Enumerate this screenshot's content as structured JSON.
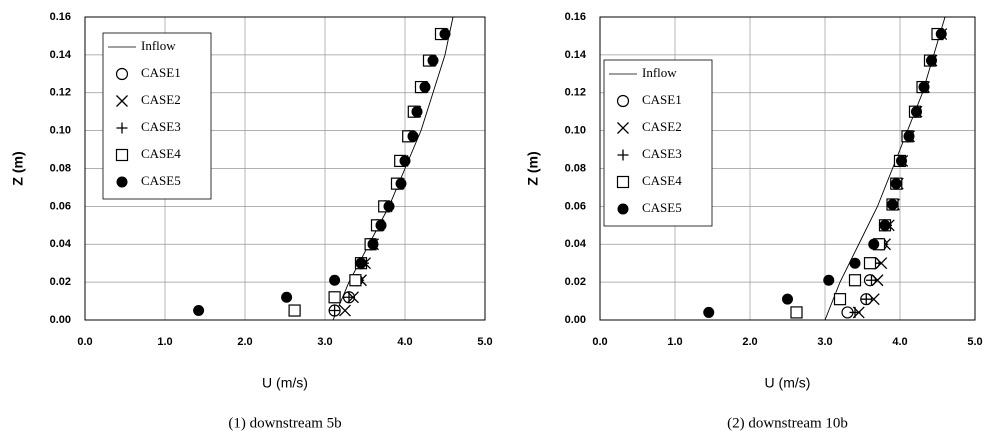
{
  "chart_data": [
    {
      "type": "scatter",
      "caption": "(1) downstream 5b",
      "xlabel": "U (m/s)",
      "ylabel": "Z (m)",
      "xlim": [
        0,
        5
      ],
      "ylim": [
        0,
        0.16
      ],
      "grid": true,
      "legend": "upper left",
      "xticks": [
        {
          "value": 0,
          "label": "0.0"
        },
        {
          "value": 1,
          "label": "1.0"
        },
        {
          "value": 2,
          "label": "2.0"
        },
        {
          "value": 3,
          "label": "3.0"
        },
        {
          "value": 4,
          "label": "4.0"
        },
        {
          "value": 5,
          "label": "5.0"
        }
      ],
      "yticks": [
        {
          "value": 0,
          "label": "0.00"
        },
        {
          "value": 0.02,
          "label": "0.02"
        },
        {
          "value": 0.04,
          "label": "0.04"
        },
        {
          "value": 0.06,
          "label": "0.06"
        },
        {
          "value": 0.08,
          "label": "0.08"
        },
        {
          "value": 0.1,
          "label": "0.10"
        },
        {
          "value": 0.12,
          "label": "0.12"
        },
        {
          "value": 0.14,
          "label": "0.14"
        },
        {
          "value": 0.16,
          "label": "0.16"
        }
      ],
      "series": [
        {
          "name": "Inflow",
          "marker": "line",
          "color": "#000000",
          "x": [
            3.1,
            3.3,
            3.55,
            3.8,
            4.0,
            4.2,
            4.35,
            4.5,
            4.6
          ],
          "values": [
            0,
            0.02,
            0.04,
            0.06,
            0.08,
            0.1,
            0.12,
            0.14,
            0.16
          ]
        },
        {
          "name": "CASE1",
          "marker": "circle-open",
          "color": "#000000",
          "x": [
            3.12,
            3.3,
            3.4,
            3.45,
            3.57,
            3.65,
            3.75,
            3.9,
            3.95,
            4.05,
            4.12,
            4.2,
            4.3,
            4.45
          ],
          "values": [
            0.005,
            0.012,
            0.021,
            0.03,
            0.04,
            0.05,
            0.06,
            0.072,
            0.084,
            0.097,
            0.11,
            0.123,
            0.137,
            0.151
          ]
        },
        {
          "name": "CASE2",
          "marker": "x",
          "color": "#000000",
          "x": [
            3.25,
            3.35,
            3.45,
            3.5,
            3.6,
            3.67,
            3.77,
            3.92,
            3.97,
            4.06,
            4.13,
            4.22,
            4.32,
            4.47
          ],
          "values": [
            0.005,
            0.012,
            0.021,
            0.03,
            0.04,
            0.05,
            0.06,
            0.072,
            0.084,
            0.097,
            0.11,
            0.123,
            0.137,
            0.151
          ]
        },
        {
          "name": "CASE3",
          "marker": "plus",
          "color": "#000000",
          "x": [
            3.12,
            3.3,
            3.42,
            3.48,
            3.58,
            3.66,
            3.76,
            3.91,
            3.96,
            4.05,
            4.12,
            4.21,
            4.31,
            4.46
          ],
          "values": [
            0.005,
            0.012,
            0.021,
            0.03,
            0.04,
            0.05,
            0.06,
            0.072,
            0.084,
            0.097,
            0.11,
            0.123,
            0.137,
            0.151
          ]
        },
        {
          "name": "CASE4",
          "marker": "square-open",
          "color": "#000000",
          "x": [
            2.62,
            3.12,
            3.38,
            3.45,
            3.57,
            3.65,
            3.74,
            3.9,
            3.94,
            4.04,
            4.11,
            4.2,
            4.3,
            4.45
          ],
          "values": [
            0.005,
            0.012,
            0.021,
            0.03,
            0.04,
            0.05,
            0.06,
            0.072,
            0.084,
            0.097,
            0.11,
            0.123,
            0.137,
            0.151
          ]
        },
        {
          "name": "CASE5",
          "marker": "circle-filled",
          "color": "#000000",
          "x": [
            1.42,
            2.52,
            3.12,
            3.45,
            3.6,
            3.7,
            3.8,
            3.95,
            4.0,
            4.1,
            4.15,
            4.25,
            4.35,
            4.5
          ],
          "values": [
            0.005,
            0.012,
            0.021,
            0.03,
            0.04,
            0.05,
            0.06,
            0.072,
            0.084,
            0.097,
            0.11,
            0.123,
            0.137,
            0.151
          ]
        }
      ]
    },
    {
      "type": "scatter",
      "caption": "(2) downstream 10b",
      "xlabel": "U (m/s)",
      "ylabel": "Z (m)",
      "xlim": [
        0,
        5
      ],
      "ylim": [
        0,
        0.16
      ],
      "grid": true,
      "legend": "upper left",
      "xticks": [
        {
          "value": 0,
          "label": "0.0"
        },
        {
          "value": 1,
          "label": "1.0"
        },
        {
          "value": 2,
          "label": "2.0"
        },
        {
          "value": 3,
          "label": "3.0"
        },
        {
          "value": 4,
          "label": "4.0"
        },
        {
          "value": 5,
          "label": "5.0"
        }
      ],
      "yticks": [
        {
          "value": 0,
          "label": "0.00"
        },
        {
          "value": 0.02,
          "label": "0.02"
        },
        {
          "value": 0.04,
          "label": "0.04"
        },
        {
          "value": 0.06,
          "label": "0.06"
        },
        {
          "value": 0.08,
          "label": "0.08"
        },
        {
          "value": 0.1,
          "label": "0.10"
        },
        {
          "value": 0.12,
          "label": "0.12"
        },
        {
          "value": 0.14,
          "label": "0.14"
        },
        {
          "value": 0.16,
          "label": "0.16"
        }
      ],
      "series": [
        {
          "name": "Inflow",
          "marker": "line",
          "color": "#000000",
          "x": [
            3.0,
            3.2,
            3.45,
            3.7,
            3.9,
            4.1,
            4.3,
            4.45,
            4.6
          ],
          "values": [
            0,
            0.02,
            0.04,
            0.06,
            0.08,
            0.1,
            0.12,
            0.14,
            0.16
          ]
        },
        {
          "name": "CASE1",
          "marker": "circle-open",
          "color": "#000000",
          "x": [
            3.3,
            3.55,
            3.6,
            3.65,
            3.75,
            3.8,
            3.9,
            3.95,
            4.0,
            4.1,
            4.2,
            4.3,
            4.4,
            4.5
          ],
          "values": [
            0.004,
            0.011,
            0.021,
            0.03,
            0.04,
            0.05,
            0.061,
            0.072,
            0.084,
            0.097,
            0.11,
            0.123,
            0.137,
            0.151
          ]
        },
        {
          "name": "CASE2",
          "marker": "x",
          "color": "#000000",
          "x": [
            3.45,
            3.65,
            3.7,
            3.75,
            3.8,
            3.85,
            3.92,
            3.97,
            4.03,
            4.12,
            4.22,
            4.32,
            4.42,
            4.55
          ],
          "values": [
            0.004,
            0.011,
            0.021,
            0.03,
            0.04,
            0.05,
            0.061,
            0.072,
            0.084,
            0.097,
            0.11,
            0.123,
            0.137,
            0.151
          ]
        },
        {
          "name": "CASE3",
          "marker": "plus",
          "color": "#000000",
          "x": [
            3.4,
            3.55,
            3.62,
            3.67,
            3.77,
            3.82,
            3.9,
            3.95,
            4.0,
            4.1,
            4.2,
            4.3,
            4.4,
            4.5
          ],
          "values": [
            0.004,
            0.011,
            0.021,
            0.03,
            0.04,
            0.05,
            0.061,
            0.072,
            0.084,
            0.097,
            0.11,
            0.123,
            0.137,
            0.151
          ]
        },
        {
          "name": "CASE4",
          "marker": "square-open",
          "color": "#000000",
          "x": [
            2.62,
            3.2,
            3.4,
            3.6,
            3.72,
            3.8,
            3.9,
            3.95,
            4.0,
            4.1,
            4.2,
            4.3,
            4.4,
            4.5
          ],
          "values": [
            0.004,
            0.011,
            0.021,
            0.03,
            0.04,
            0.05,
            0.061,
            0.072,
            0.084,
            0.097,
            0.11,
            0.123,
            0.137,
            0.151
          ]
        },
        {
          "name": "CASE5",
          "marker": "circle-filled",
          "color": "#000000",
          "x": [
            1.45,
            2.5,
            3.05,
            3.4,
            3.65,
            3.8,
            3.9,
            3.95,
            4.02,
            4.12,
            4.22,
            4.32,
            4.42,
            4.55
          ],
          "values": [
            0.004,
            0.011,
            0.021,
            0.03,
            0.04,
            0.05,
            0.061,
            0.072,
            0.084,
            0.097,
            0.11,
            0.123,
            0.137,
            0.151
          ]
        }
      ]
    }
  ]
}
